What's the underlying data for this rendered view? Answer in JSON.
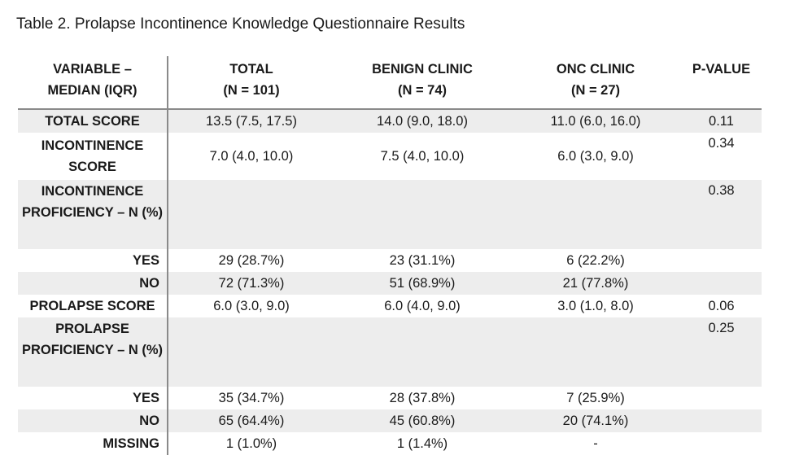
{
  "caption": "Table 2. Prolapse Incontinence Knowledge Questionnaire Results",
  "headers": [
    {
      "line1": "VARIABLE –",
      "line2": "MEDIAN (IQR)"
    },
    {
      "line1": "TOTAL",
      "line2": "(N = 101)"
    },
    {
      "line1": "BENIGN CLINIC",
      "line2": "(N = 74)"
    },
    {
      "line1": "ONC CLINIC",
      "line2": "(N = 27)"
    },
    {
      "line1": "P-VALUE",
      "line2": ""
    }
  ],
  "rows": [
    {
      "label": "TOTAL SCORE",
      "total": "13.5 (7.5, 17.5)",
      "benign": "14.0 (9.0, 18.0)",
      "onc": "11.0 (6.0, 16.0)",
      "p": "0.11"
    },
    {
      "label": "INCONTINENCE SCORE",
      "total": "7.0 (4.0, 10.0)",
      "benign": "7.5 (4.0, 10.0)",
      "onc": "6.0 (3.0, 9.0)",
      "p": "0.34"
    },
    {
      "label": "INCONTINENCE PROFICIENCY – N (%)",
      "total": "",
      "benign": "",
      "onc": "",
      "p": "0.38"
    },
    {
      "label": "YES",
      "total": "29 (28.7%)",
      "benign": "23 (31.1%)",
      "onc": "6 (22.2%)",
      "p": ""
    },
    {
      "label": "NO",
      "total": "72 (71.3%)",
      "benign": "51 (68.9%)",
      "onc": "21 (77.8%)",
      "p": ""
    },
    {
      "label": "PROLAPSE SCORE",
      "total": "6.0 (3.0, 9.0)",
      "benign": "6.0 (4.0, 9.0)",
      "onc": "3.0 (1.0, 8.0)",
      "p": "0.06"
    },
    {
      "label": "PROLAPSE PROFICIENCY – N (%)",
      "total": "",
      "benign": "",
      "onc": "",
      "p": "0.25"
    },
    {
      "label": "YES",
      "total": "35 (34.7%)",
      "benign": "28 (37.8%)",
      "onc": "7 (25.9%)",
      "p": ""
    },
    {
      "label": "NO",
      "total": "65 (64.4%)",
      "benign": "45 (60.8%)",
      "onc": "20 (74.1%)",
      "p": ""
    },
    {
      "label": "MISSING",
      "total": "1 (1.0%)",
      "benign": "1 (1.4%)",
      "onc": "-",
      "p": ""
    }
  ]
}
